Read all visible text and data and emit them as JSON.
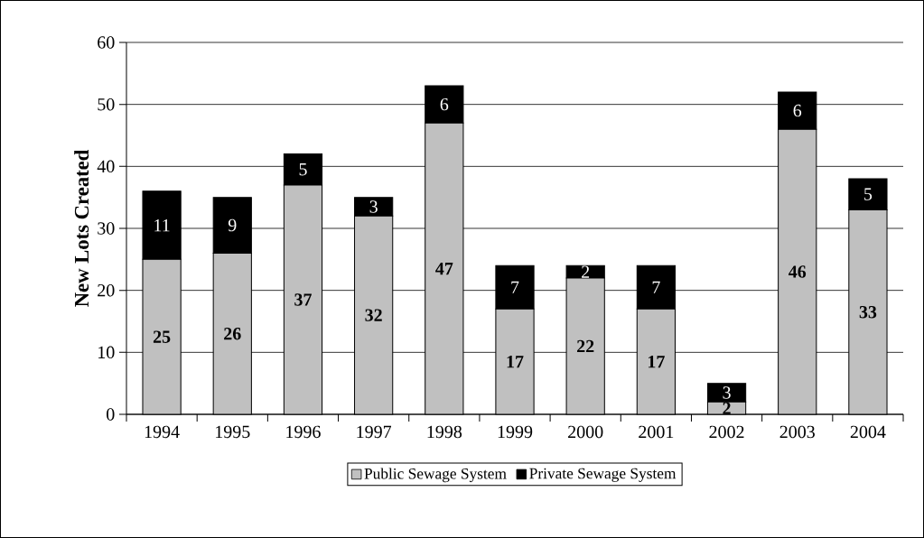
{
  "chart_data": {
    "type": "bar",
    "stacked": true,
    "ylabel": "New Lots Created",
    "categories": [
      "1994",
      "1995",
      "1996",
      "1997",
      "1998",
      "1999",
      "2000",
      "2001",
      "2002",
      "2003",
      "2004"
    ],
    "series": [
      {
        "name": "Public Sewage System",
        "color": "#c0c0c0",
        "values": [
          25,
          26,
          37,
          32,
          47,
          17,
          22,
          17,
          2,
          46,
          33
        ]
      },
      {
        "name": "Private Sewage System",
        "color": "#000000",
        "values": [
          11,
          9,
          5,
          3,
          6,
          7,
          2,
          7,
          3,
          6,
          5
        ]
      }
    ],
    "ylim": [
      0,
      60
    ],
    "yticks": [
      0,
      10,
      20,
      30,
      40,
      50,
      60
    ],
    "grid": "y",
    "legend": "bottom",
    "data_labels": true
  }
}
